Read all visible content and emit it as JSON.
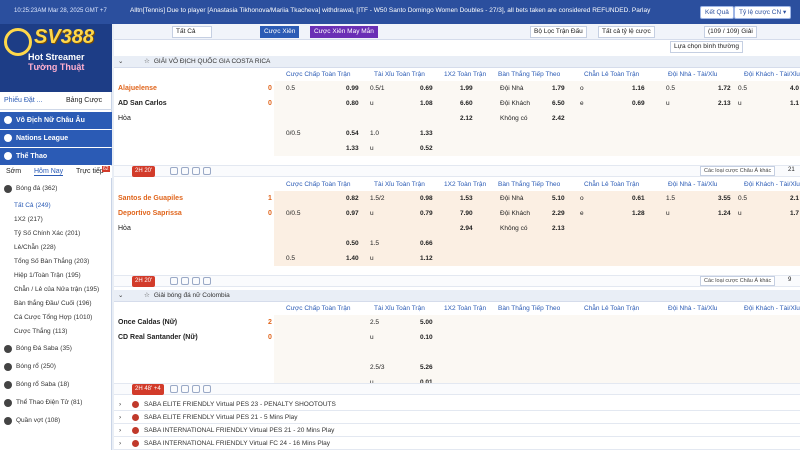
{
  "topbar": {
    "time": "10:25:23AM Mar 28, 2025 GMT +7",
    "ticker": "Alltn[Tennis] Due to player [Anastasia Tikhonova/Mariia Tkacheva] withdrawal, [ITF - W50 Santo Domingo Women Doubles - 27/3], all bets taken are considered REFUNDED. Parlay",
    "ket_qua": "Kết Quả",
    "currency": "Tỷ lệ cược CN ▾"
  },
  "sidebar": {
    "brand": "SV388",
    "promo_line1": "Hot Streamer",
    "promo_line2": "Tường Thuật",
    "tab_phieu": "Phiếu Đặt ...",
    "tab_bang": "Bảng Cược",
    "sections": [
      "Vô Địch Nữ Châu Âu",
      "Nations League",
      "Thể Thao"
    ],
    "subtabs": [
      "Sớm",
      "Hôm Nay",
      "Trực tiếp"
    ],
    "subtab_badge": "62",
    "items": [
      {
        "label": "Bóng đá",
        "count": "(362)"
      },
      {
        "label": "Tất Cả",
        "count": "(249)"
      },
      {
        "label": "1X2",
        "count": "(217)"
      },
      {
        "label": "Tỷ Số Chính Xác",
        "count": "(201)"
      },
      {
        "label": "Lẻ/Chẵn",
        "count": "(228)"
      },
      {
        "label": "Tổng Số Bàn Thắng",
        "count": "(203)"
      },
      {
        "label": "Hiệp 1/Toàn Trận",
        "count": "(195)"
      },
      {
        "label": "Chẵn / Lẻ của Nửa trận",
        "count": "(195)"
      },
      {
        "label": "Bàn thắng Đầu/ Cuối",
        "count": "(196)"
      },
      {
        "label": "Cá Cược Tổng Hợp",
        "count": "(1010)"
      },
      {
        "label": "Cược Thắng",
        "count": "(113)"
      },
      {
        "label": "Bóng Đá Saba",
        "count": "(35)"
      },
      {
        "label": "Bóng rổ",
        "count": "(250)"
      },
      {
        "label": "Bóng rổ Saba",
        "count": "(18)"
      },
      {
        "label": "Thể Thao Điện Tử",
        "count": "(81)"
      },
      {
        "label": "Quần vợt",
        "count": "(108)"
      }
    ]
  },
  "filters": {
    "all": "Tất Cả",
    "parlay": "Cược Xiên",
    "lucky_parlay": "Cược Xiên May Mắn",
    "league_filter": "Bộ Lọc Trận Đấu",
    "odds_type": "Tất cả tỷ lệ cược",
    "count": "(109 / 109) Giải",
    "sort": "Lựa chọn bình thường"
  },
  "columns": [
    "Cược Chấp Toàn Trận",
    "Tài Xỉu Toàn Trận",
    "1X2 Toàn Trận",
    "Bàn Thắng Tiếp Theo",
    "Chẵn Lẻ Toàn Trận",
    "Đội Nhà - Tài/Xỉu",
    "Đội Khách - Tài/Xỉu"
  ],
  "matches": [
    {
      "league": "GIẢI VÔ ĐỊCH QUỐC GIA COSTA RICA",
      "home": "Alajuelense",
      "away": "AD San Carlos",
      "draw": "Hòa",
      "home_score": "0",
      "away_score": "0",
      "live": "2H 20'",
      "rows": [
        {
          "hdp": "0.5",
          "hdp_o": "0.99",
          "ou": "0.5/1",
          "ou_o": "0.69",
          "x12": "1.99",
          "next_l": "Đội Nhà",
          "next": "1.79",
          "oe_l": "o",
          "oe": "1.16",
          "home_ou_l": "0.5",
          "home_ou": "1.72",
          "away_ou_l": "0.5",
          "away_ou": "4.0"
        },
        {
          "hdp": "",
          "hdp_o": "0.80",
          "ou": "u",
          "ou_o": "1.08",
          "x12": "6.60",
          "next_l": "Đội Khách",
          "next": "6.50",
          "oe_l": "e",
          "oe": "0.69",
          "home_ou_l": "u",
          "home_ou": "2.13",
          "away_ou_l": "u",
          "away_ou": "1.1"
        },
        {
          "hdp": "",
          "hdp_o": "",
          "ou": "",
          "ou_o": "",
          "x12": "2.12",
          "next_l": "Không có",
          "next": "2.42",
          "oe_l": "",
          "oe": "",
          "home_ou_l": "",
          "home_ou": "",
          "away_ou_l": "",
          "away_ou": ""
        },
        {
          "hdp": "0/0.5",
          "hdp_o": "0.54",
          "ou": "1.0",
          "ou_o": "1.33",
          "x12": "",
          "next_l": "",
          "next": "",
          "oe_l": "",
          "oe": "",
          "home_ou_l": "",
          "home_ou": "",
          "away_ou_l": "",
          "away_ou": ""
        },
        {
          "hdp": "",
          "hdp_o": "1.33",
          "ou": "u",
          "ou_o": "0.52",
          "x12": "",
          "next_l": "",
          "next": "",
          "oe_l": "",
          "oe": "",
          "home_ou_l": "",
          "home_ou": "",
          "away_ou_l": "",
          "away_ou": ""
        }
      ],
      "more": "Các loại cược Châu Á khác",
      "more_count": "21"
    },
    {
      "home": "Santos de Guapiles",
      "away": "Deportivo Saprissa",
      "draw": "Hòa",
      "home_score": "1",
      "away_score": "0",
      "live": "2H 20'",
      "rows": [
        {
          "hdp": "",
          "hdp_o": "0.82",
          "ou": "1.5/2",
          "ou_o": "0.98",
          "x12": "1.53",
          "next_l": "Đội Nhà",
          "next": "5.10",
          "oe_l": "o",
          "oe": "0.61",
          "home_ou_l": "1.5",
          "home_ou": "3.55",
          "away_ou_l": "0.5",
          "away_ou": "2.1"
        },
        {
          "hdp": "0/0.5",
          "hdp_o": "0.97",
          "ou": "u",
          "ou_o": "0.79",
          "x12": "7.90",
          "next_l": "Đội Khách",
          "next": "2.29",
          "oe_l": "e",
          "oe": "1.28",
          "home_ou_l": "u",
          "home_ou": "1.24",
          "away_ou_l": "u",
          "away_ou": "1.7"
        },
        {
          "hdp": "",
          "hdp_o": "",
          "ou": "",
          "ou_o": "",
          "x12": "2.94",
          "next_l": "Không có",
          "next": "2.13",
          "oe_l": "",
          "oe": "",
          "home_ou_l": "",
          "home_ou": "",
          "away_ou_l": "",
          "away_ou": ""
        },
        {
          "hdp": "",
          "hdp_o": "0.50",
          "ou": "1.5",
          "ou_o": "0.66",
          "x12": "",
          "next_l": "",
          "next": "",
          "oe_l": "",
          "oe": "",
          "home_ou_l": "",
          "home_ou": "",
          "away_ou_l": "",
          "away_ou": ""
        },
        {
          "hdp": "0.5",
          "hdp_o": "1.40",
          "ou": "u",
          "ou_o": "1.12",
          "x12": "",
          "next_l": "",
          "next": "",
          "oe_l": "",
          "oe": "",
          "home_ou_l": "",
          "home_ou": "",
          "away_ou_l": "",
          "away_ou": ""
        }
      ],
      "more": "Các loại cược Châu Á khác",
      "more_count": "9"
    },
    {
      "league": "Giải bóng đá nữ Colombia",
      "home": "Once Caldas (Nữ)",
      "away": "CD Real Santander (Nữ)",
      "home_score": "2",
      "away_score": "0",
      "live": "2H 48' +4",
      "rows": [
        {
          "ou": "2.5",
          "ou_o": "5.00"
        },
        {
          "ou": "u",
          "ou_o": "0.10"
        },
        {
          "ou": "",
          "ou_o": ""
        },
        {
          "ou": "2.5/3",
          "ou_o": "5.26"
        },
        {
          "ou": "u",
          "ou_o": "0.01"
        }
      ]
    }
  ],
  "extra_leagues": [
    "SABA ELITE FRIENDLY Virtual PES 23 - PENALTY SHOOTOUTS",
    "SABA ELITE FRIENDLY Virtual PES 21 - 5 Mins Play",
    "SABA INTERNATIONAL FRIENDLY Virtual PES 21 - 20 Mins Play",
    "SABA INTERNATIONAL FRIENDLY Virtual FC 24 - 16 Mins Play"
  ]
}
